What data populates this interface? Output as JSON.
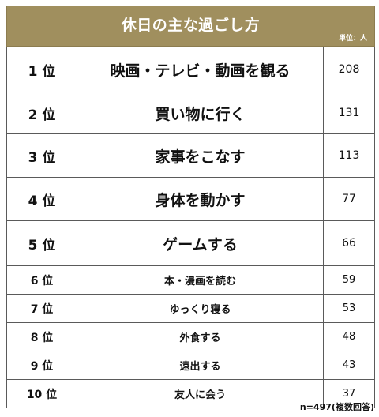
{
  "chart_data": {
    "type": "table",
    "title": "休日の主な過ごし方",
    "unit_label": "単位：人",
    "rows": [
      {
        "rank": "1 位",
        "label": "映画・テレビ・動画を観る",
        "value": 208
      },
      {
        "rank": "2 位",
        "label": "買い物に行く",
        "value": 131
      },
      {
        "rank": "3 位",
        "label": "家事をこなす",
        "value": 113
      },
      {
        "rank": "4 位",
        "label": "身体を動かす",
        "value": 77
      },
      {
        "rank": "5 位",
        "label": "ゲームする",
        "value": 66
      },
      {
        "rank": "6 位",
        "label": "本・漫画を読む",
        "value": 59
      },
      {
        "rank": "7 位",
        "label": "ゆっくり寝る",
        "value": 53
      },
      {
        "rank": "8 位",
        "label": "外食する",
        "value": 48
      },
      {
        "rank": "9 位",
        "label": "遠出する",
        "value": 43
      },
      {
        "rank": "10 位",
        "label": "友人に会う",
        "value": 37
      }
    ],
    "note": "n=497(複数回答)"
  },
  "colors": {
    "header_bg": "#a08f5e",
    "header_text": "#ffffff",
    "border": "#5a5a5a"
  }
}
